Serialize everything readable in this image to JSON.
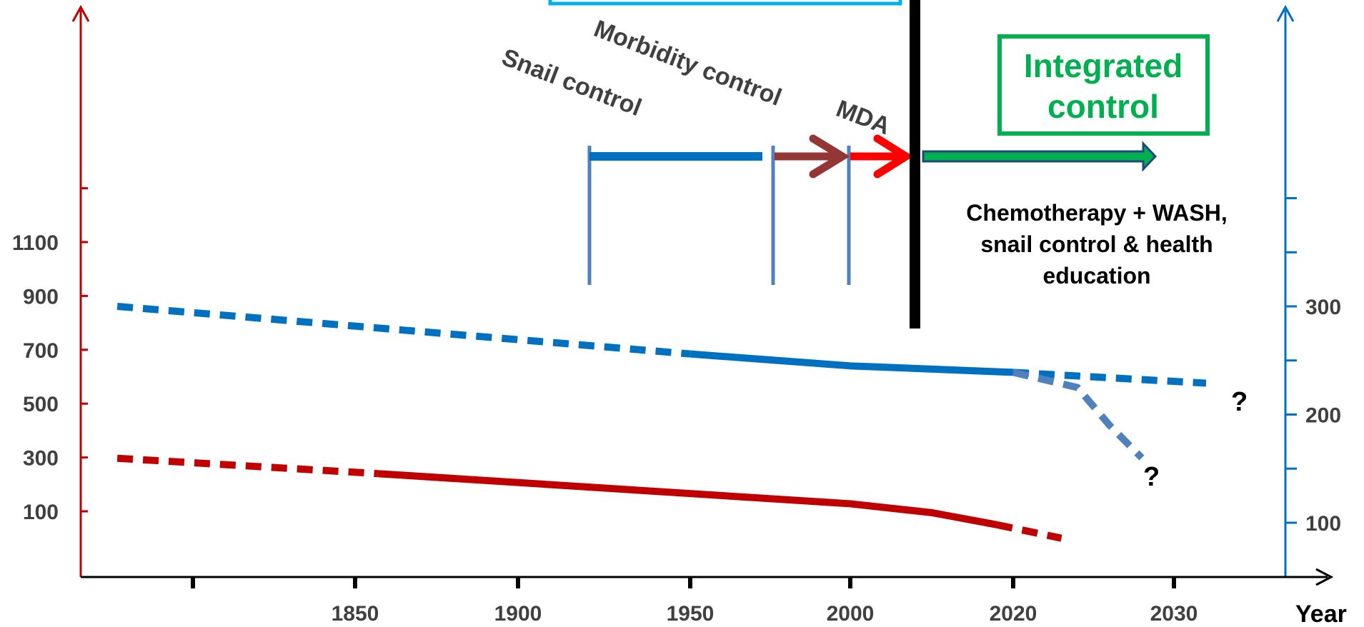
{
  "colors": {
    "left_axis": "#c00000",
    "right_axis": "#0070c0",
    "x_axis": "#000000",
    "series_blue": "#0070c0",
    "series_blue_light": "#4f81bd",
    "series_red": "#c00000",
    "snail_bar": "#0070c0",
    "morbidity_arrow": "#943634",
    "mda_arrow": "#ff0000",
    "integrated_arrow_fill": "#00b050",
    "integrated_arrow_border": "#1f497d",
    "timeline_bar": "#000000",
    "top_box_border": "#00b0f0",
    "integrated_box_border": "#00b050",
    "tick_text": "#404040"
  },
  "annotations": {
    "snail_control": "Snail control",
    "morbidity_control": "Morbidity control",
    "mda": "MDA",
    "integrated_control": [
      "Integrated",
      "control"
    ],
    "chemotherapy": [
      "Chemotherapy + WASH,",
      "snail control & health",
      "education"
    ],
    "question_mark": "?"
  },
  "chart_data": {
    "type": "line",
    "xlabel": "Year",
    "x_ticks": [
      1850,
      1900,
      1950,
      2000,
      2020,
      2030
    ],
    "y_left_ticks": [
      100,
      300,
      500,
      700,
      900,
      1100
    ],
    "y_right_ticks": [
      100,
      200,
      300
    ],
    "series": [
      {
        "axis": "right",
        "color": "series_blue",
        "segments": [
          {
            "style": "dashed",
            "points": [
              [
                1800,
                300
              ],
              [
                1950,
                256
              ]
            ]
          },
          {
            "style": "solid",
            "points": [
              [
                1950,
                256
              ],
              [
                2000,
                245
              ],
              [
                2020,
                239
              ]
            ]
          },
          {
            "style": "dashed",
            "points": [
              [
                2020,
                239
              ],
              [
                2032,
                229
              ]
            ]
          }
        ]
      },
      {
        "axis": "right",
        "color": "series_blue_light",
        "segments": [
          {
            "style": "dashed",
            "points": [
              [
                2020,
                239
              ],
              [
                2024,
                225
              ],
              [
                2026,
                190
              ],
              [
                2028,
                160
              ]
            ]
          }
        ]
      },
      {
        "axis": "left",
        "color": "series_red",
        "segments": [
          {
            "style": "dashed",
            "points": [
              [
                1800,
                297
              ],
              [
                1857,
                240
              ]
            ]
          },
          {
            "style": "solid",
            "points": [
              [
                1857,
                240
              ],
              [
                2000,
                128
              ],
              [
                2010,
                95
              ],
              [
                2018,
                50
              ]
            ]
          },
          {
            "style": "dashed",
            "points": [
              [
                2018,
                50
              ],
              [
                2023,
                0
              ]
            ]
          }
        ]
      }
    ]
  }
}
